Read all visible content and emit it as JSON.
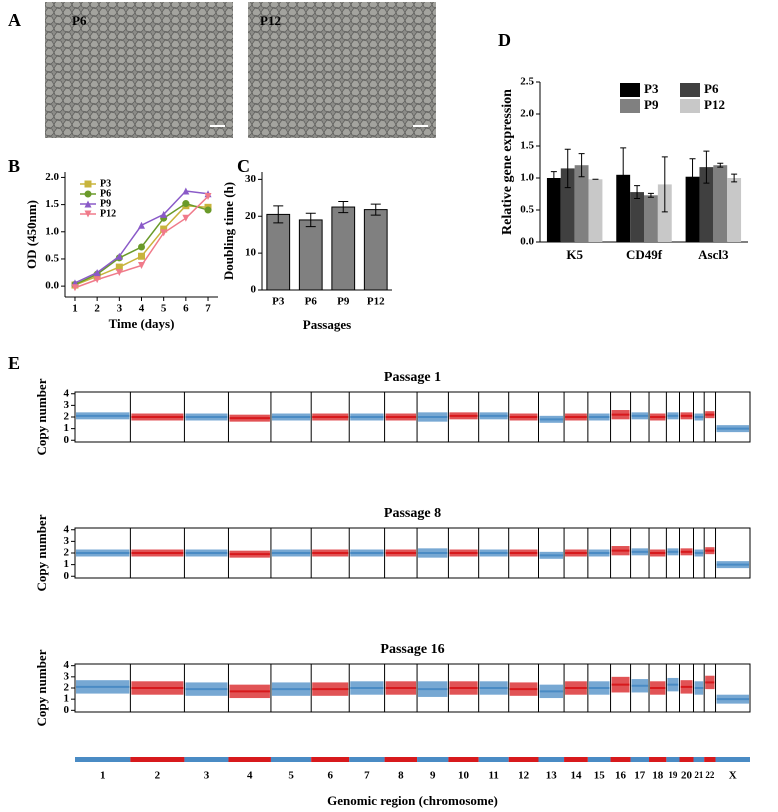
{
  "panel_labels": [
    "A",
    "B",
    "C",
    "D",
    "E"
  ],
  "images": [
    {
      "label": "P6"
    },
    {
      "label": "P12"
    }
  ],
  "genome_axis": {
    "categories": [
      "1",
      "2",
      "3",
      "4",
      "5",
      "6",
      "7",
      "8",
      "9",
      "10",
      "11",
      "12",
      "13",
      "14",
      "15",
      "16",
      "17",
      "18",
      "19",
      "20",
      "21",
      "22",
      "X"
    ],
    "xlabel": "Genomic region (chromosome)"
  },
  "chart_data": [
    {
      "type": "line",
      "xlabel": "Time (days)",
      "ylabel": "OD (450nm)",
      "x": [
        1,
        2,
        3,
        4,
        5,
        6,
        7
      ],
      "xlim": [
        0.55,
        7.45
      ],
      "xticks": [
        1,
        2,
        3,
        4,
        5,
        6,
        7
      ],
      "ylim": [
        -0.2,
        2.1
      ],
      "yticks": [
        {
          "value": 0,
          "label": "0.0"
        },
        {
          "value": 0.5,
          "label": "0.5"
        },
        {
          "value": 1,
          "label": "1.0"
        },
        {
          "value": 1.5,
          "label": "1.5"
        },
        {
          "value": 2,
          "label": "2.0"
        }
      ],
      "series": [
        {
          "name": "P3",
          "color": "#c8b43c",
          "marker": "square",
          "values": [
            0.02,
            0.18,
            0.35,
            0.55,
            1.05,
            1.48,
            1.45
          ]
        },
        {
          "name": "P6",
          "color": "#6a9a2a",
          "marker": "circle",
          "values": [
            0.03,
            0.22,
            0.52,
            0.72,
            1.25,
            1.52,
            1.4
          ]
        },
        {
          "name": "P9",
          "color": "#8a5ac8",
          "marker": "triangle",
          "values": [
            0.06,
            0.25,
            0.55,
            1.12,
            1.32,
            1.75,
            1.7
          ]
        },
        {
          "name": "P12",
          "color": "#f07a8a",
          "marker": "down-triangle",
          "values": [
            -0.03,
            0.12,
            0.25,
            0.38,
            0.98,
            1.25,
            1.65
          ]
        }
      ]
    },
    {
      "type": "bar",
      "xlabel": "Passages",
      "ylabel": "Doubling time (h)",
      "categories": [
        "P3",
        "P6",
        "P9",
        "P12"
      ],
      "values": [
        20.5,
        19,
        22.5,
        21.8
      ],
      "errors": [
        2.3,
        1.8,
        1.5,
        1.5
      ],
      "color": "#808080",
      "ylim": [
        0,
        32
      ],
      "yticks": [
        0,
        10,
        20,
        30
      ]
    },
    {
      "type": "grouped_bar",
      "ylabel": "Relative gene expression",
      "categories": [
        "K5",
        "CD49f",
        "Ascl3"
      ],
      "ylim": [
        0,
        2.5
      ],
      "yticks": [
        {
          "value": 0,
          "label": "0.0"
        },
        {
          "value": 0.5,
          "label": "0.5"
        },
        {
          "value": 1,
          "label": "1.0"
        },
        {
          "value": 1.5,
          "label": "1.5"
        },
        {
          "value": 2,
          "label": "2.0"
        },
        {
          "value": 2.5,
          "label": "2.5"
        }
      ],
      "series": [
        {
          "name": "P3",
          "color": "#000000",
          "values": [
            1.0,
            1.05,
            1.02
          ],
          "errors": [
            0.1,
            0.42,
            0.28
          ]
        },
        {
          "name": "P6",
          "color": "#404040",
          "values": [
            1.15,
            0.78,
            1.17
          ],
          "errors": [
            0.3,
            0.1,
            0.25
          ]
        },
        {
          "name": "P9",
          "color": "#808080",
          "values": [
            1.2,
            0.73,
            1.2
          ],
          "errors": [
            0.18,
            0.03,
            0.03
          ]
        },
        {
          "name": "P12",
          "color": "#c8c8c8",
          "values": [
            0.98,
            0.9,
            1.0
          ],
          "errors": [
            0,
            0.43,
            0.06
          ]
        }
      ]
    },
    {
      "type": "copy_number",
      "title": "Passage 1",
      "ylabel": "Copy number",
      "colors": [
        "#4a8bc4",
        "#d7191c"
      ],
      "ylim": [
        -0.15,
        4.15
      ],
      "yticks": [
        0,
        1,
        2,
        3,
        4
      ],
      "values": [
        2.1,
        2.0,
        2.0,
        1.9,
        2.0,
        2.0,
        2.0,
        2.0,
        2.0,
        2.1,
        2.1,
        2.0,
        1.8,
        2.0,
        2.0,
        2.2,
        2.1,
        2.0,
        2.1,
        2.1,
        2.0,
        2.2,
        1.0
      ],
      "spread": [
        0.3,
        0.3,
        0.3,
        0.3,
        0.3,
        0.3,
        0.3,
        0.3,
        0.4,
        0.3,
        0.3,
        0.3,
        0.3,
        0.3,
        0.3,
        0.4,
        0.3,
        0.3,
        0.3,
        0.3,
        0.3,
        0.3,
        0.3
      ]
    },
    {
      "type": "copy_number",
      "title": "Passage 8",
      "ylabel": "Copy number",
      "colors": [
        "#4a8bc4",
        "#d7191c"
      ],
      "ylim": [
        -0.15,
        4.15
      ],
      "yticks": [
        0,
        1,
        2,
        3,
        4
      ],
      "values": [
        2.0,
        2.0,
        2.0,
        1.9,
        2.0,
        2.0,
        2.0,
        2.0,
        2.0,
        2.0,
        2.0,
        2.0,
        1.8,
        2.0,
        2.0,
        2.2,
        2.1,
        2.0,
        2.1,
        2.1,
        2.0,
        2.2,
        1.0
      ],
      "spread": [
        0.3,
        0.3,
        0.3,
        0.3,
        0.3,
        0.3,
        0.3,
        0.3,
        0.4,
        0.3,
        0.3,
        0.3,
        0.3,
        0.3,
        0.3,
        0.4,
        0.3,
        0.3,
        0.3,
        0.3,
        0.3,
        0.3,
        0.3
      ]
    },
    {
      "type": "copy_number",
      "title": "Passage 16",
      "ylabel": "Copy number",
      "colors": [
        "#4a8bc4",
        "#d7191c"
      ],
      "ylim": [
        -0.15,
        4.15
      ],
      "yticks": [
        0,
        1,
        2,
        3,
        4
      ],
      "values": [
        2.1,
        2.0,
        1.9,
        1.7,
        1.9,
        1.9,
        2.0,
        2.0,
        1.9,
        2.0,
        2.0,
        1.9,
        1.7,
        2.0,
        2.0,
        2.3,
        2.2,
        2.0,
        2.3,
        2.1,
        2.0,
        2.5,
        1.0
      ],
      "spread": [
        0.6,
        0.6,
        0.6,
        0.6,
        0.6,
        0.6,
        0.6,
        0.6,
        0.7,
        0.6,
        0.6,
        0.6,
        0.6,
        0.6,
        0.6,
        0.7,
        0.6,
        0.6,
        0.6,
        0.6,
        0.6,
        0.6,
        0.4
      ]
    }
  ]
}
